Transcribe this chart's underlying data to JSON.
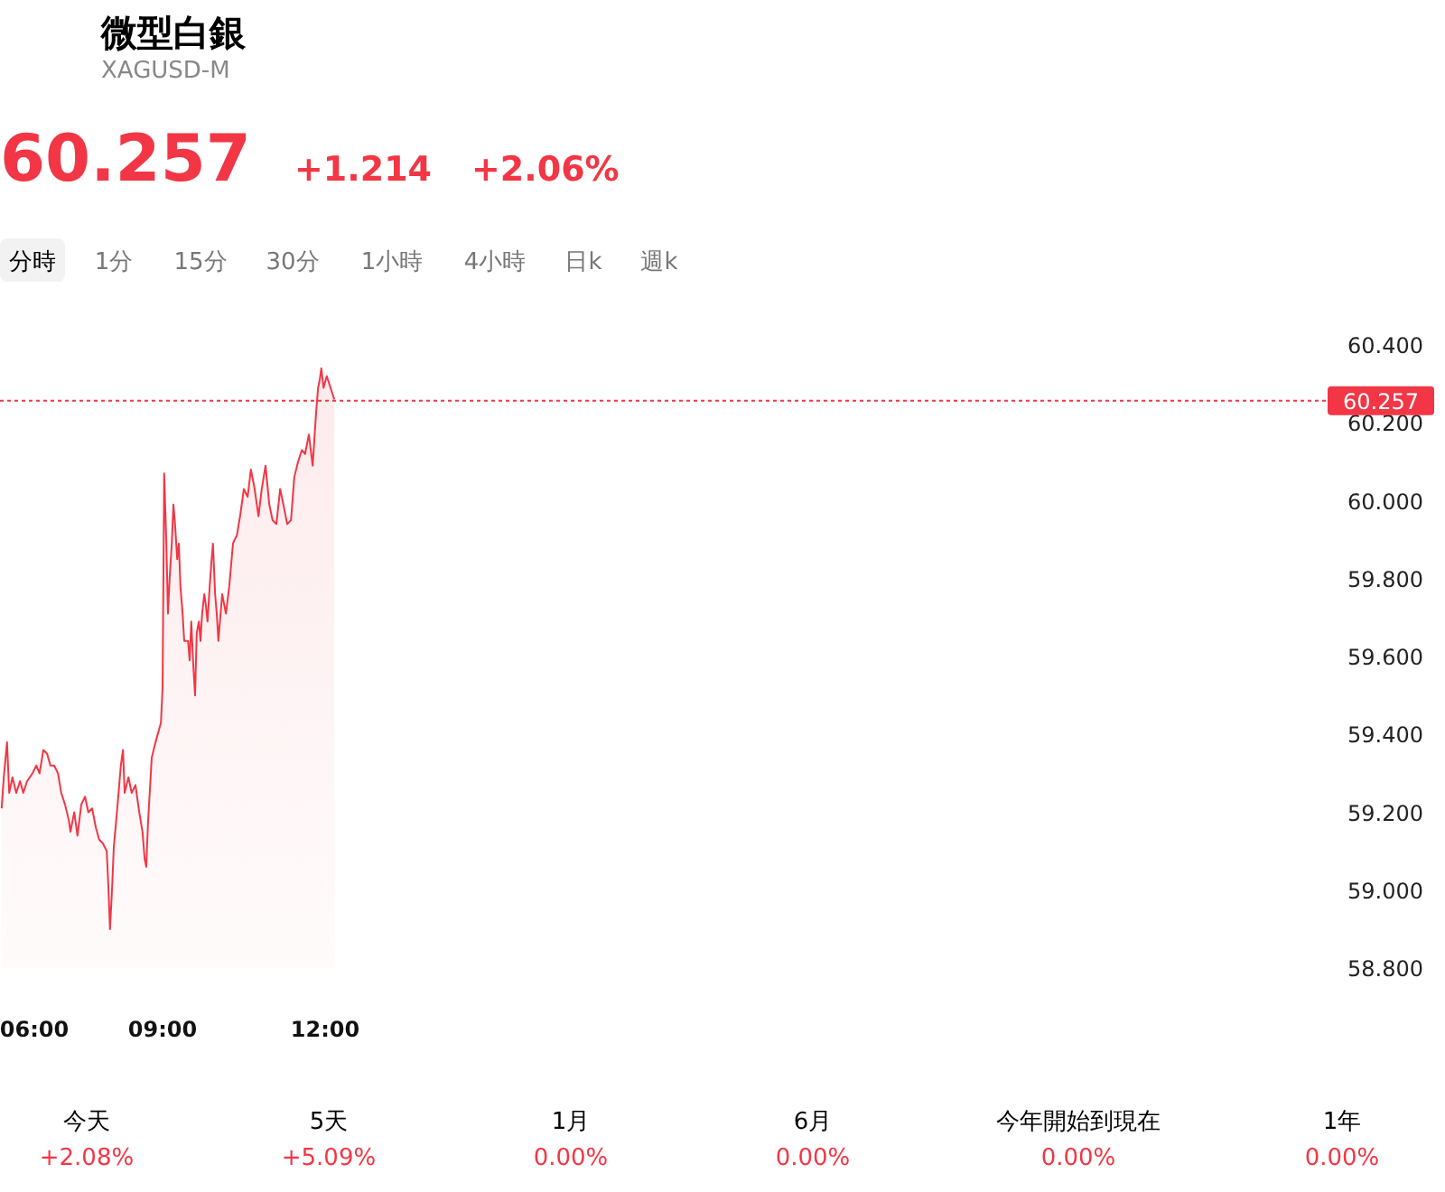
{
  "chart_data": {
    "type": "area",
    "title": "微型白銀",
    "subtitle": "XAGUSD-M",
    "annotations": [
      "60.257",
      "+1.214",
      "+2.06%",
      "分時",
      "1分",
      "15分",
      "30分",
      "1小時",
      "4小時",
      "日k",
      "週k",
      "今天",
      "+2.08%",
      "5天",
      "+5.09%",
      "1月",
      "0.00%",
      "6月",
      "0.00%",
      "今年開始到現在",
      "0.00%",
      "1年",
      "0.00%"
    ],
    "xlim": [
      6,
      30.5
    ],
    "xticks": [
      {
        "value": 6,
        "label": "06:00"
      },
      {
        "value": 9,
        "label": "09:00"
      },
      {
        "value": 12,
        "label": "12:00"
      }
    ],
    "ylim": [
      58.8,
      60.4
    ],
    "yticks": [
      {
        "value": 58.8,
        "label": "58.800"
      },
      {
        "value": 59,
        "label": "59.000"
      },
      {
        "value": 59.2,
        "label": "59.200"
      },
      {
        "value": 59.4,
        "label": "59.400"
      },
      {
        "value": 59.6,
        "label": "59.600"
      },
      {
        "value": 59.8,
        "label": "59.800"
      },
      {
        "value": 60,
        "label": "60.000"
      },
      {
        "value": 60.2,
        "label": "60.200"
      },
      {
        "value": 60.4,
        "label": "60.400"
      }
    ],
    "grid": false,
    "ref_lines": [
      {
        "axis": "y",
        "value": 60.257,
        "label": "60.257",
        "color": "#f23645",
        "line_style": "dotted"
      }
    ],
    "series": [
      {
        "color": "#f23645",
        "x": [
          6.03,
          6.07,
          6.13,
          6.17,
          6.23,
          6.3,
          6.37,
          6.43,
          6.5,
          6.6,
          6.67,
          6.73,
          6.8,
          6.87,
          6.93,
          7.0,
          7.07,
          7.13,
          7.2,
          7.27,
          7.3,
          7.37,
          7.43,
          7.5,
          7.57,
          7.63,
          7.7,
          7.77,
          7.83,
          7.9,
          7.97,
          8.0,
          8.03,
          8.07,
          8.1,
          8.17,
          8.2,
          8.23,
          8.27,
          8.3,
          8.37,
          8.43,
          8.5,
          8.57,
          8.63,
          8.67,
          8.7,
          8.73,
          8.8,
          8.87,
          8.93,
          8.97,
          9.0,
          9.03,
          9.07,
          9.1,
          9.13,
          9.17,
          9.2,
          9.23,
          9.27,
          9.3,
          9.33,
          9.37,
          9.4,
          9.47,
          9.5,
          9.53,
          9.57,
          9.6,
          9.63,
          9.67,
          9.7,
          9.73,
          9.77,
          9.8,
          9.83,
          9.87,
          9.9,
          9.93,
          9.97,
          10.0,
          10.03,
          10.1,
          10.17,
          10.23,
          10.3,
          10.33,
          10.37,
          10.43,
          10.5,
          10.57,
          10.63,
          10.7,
          10.77,
          10.83,
          10.9,
          10.97,
          11.03,
          11.1,
          11.17,
          11.23,
          11.3,
          11.37,
          11.43,
          11.5,
          11.57,
          11.63,
          11.7,
          11.77,
          11.83,
          11.87,
          11.9,
          11.93,
          11.97,
          12.03,
          12.1,
          12.17
        ],
        "values": [
          59.21,
          59.29,
          59.38,
          59.25,
          59.29,
          59.25,
          59.28,
          59.25,
          59.28,
          59.3,
          59.32,
          59.3,
          59.36,
          59.35,
          59.32,
          59.32,
          59.3,
          59.25,
          59.22,
          59.18,
          59.15,
          59.2,
          59.14,
          59.22,
          59.24,
          59.2,
          59.21,
          59.16,
          59.13,
          59.12,
          59.1,
          59.01,
          58.9,
          59.01,
          59.11,
          59.22,
          59.27,
          59.32,
          59.36,
          59.25,
          59.29,
          59.25,
          59.27,
          59.2,
          59.15,
          59.08,
          59.06,
          59.17,
          59.34,
          59.38,
          59.41,
          59.43,
          59.52,
          60.07,
          59.89,
          59.71,
          59.8,
          59.89,
          59.99,
          59.94,
          59.85,
          59.89,
          59.78,
          59.71,
          59.64,
          59.64,
          59.59,
          59.69,
          59.57,
          59.5,
          59.66,
          59.69,
          59.64,
          59.71,
          59.76,
          59.73,
          59.69,
          59.78,
          59.84,
          59.89,
          59.76,
          59.71,
          59.64,
          59.76,
          59.71,
          59.78,
          59.89,
          59.9,
          59.91,
          59.96,
          60.03,
          60.01,
          60.08,
          60.03,
          59.96,
          60.03,
          60.09,
          59.99,
          59.95,
          59.94,
          60.03,
          59.99,
          59.94,
          59.95,
          60.06,
          60.1,
          60.13,
          60.12,
          60.17,
          60.09,
          60.22,
          60.29,
          60.31,
          60.34,
          60.29,
          60.32,
          60.29,
          60.26
        ]
      }
    ]
  }
}
